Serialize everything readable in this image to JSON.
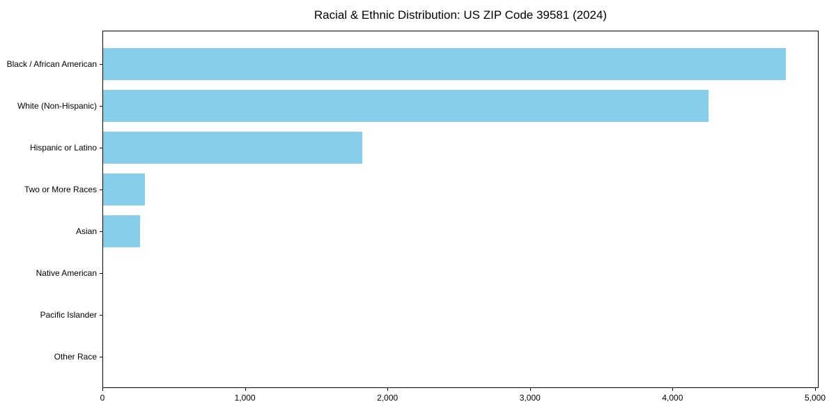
{
  "title": "Racial & Ethnic Distribution: US ZIP Code 39581 (2024)",
  "chart_data": {
    "type": "bar",
    "orientation": "horizontal",
    "title": "Racial & Ethnic Distribution: US ZIP Code 39581 (2024)",
    "categories": [
      "Black / African American",
      "White (Non-Hispanic)",
      "Hispanic or Latino",
      "Two or More Races",
      "Asian",
      "Native American",
      "Pacific Islander",
      "Other Race"
    ],
    "values": [
      4790,
      4245,
      1820,
      295,
      260,
      0,
      0,
      0
    ],
    "xlabel": "",
    "ylabel": "",
    "xlim": [
      0,
      5000
    ],
    "x_ticks": [
      0,
      1000,
      2000,
      3000,
      4000,
      5000
    ],
    "x_tick_labels": [
      "0",
      "1,000",
      "2,000",
      "3,000",
      "4,000",
      "5,000"
    ],
    "grid": false,
    "bar_color": "#87CEEB",
    "axis_color": "#000000",
    "background_color": "#ffffff"
  }
}
